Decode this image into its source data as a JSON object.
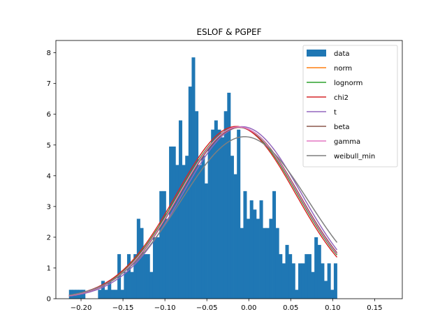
{
  "chart_data": {
    "type": "bar",
    "title": "ESLOF & PGPEF",
    "xlabel": "",
    "ylabel": "",
    "xlim": [
      -0.23,
      0.183
    ],
    "ylim": [
      0,
      8.4
    ],
    "grid": false,
    "legend_placement": "top-right",
    "x_ticks": [
      -0.2,
      -0.15,
      -0.1,
      -0.05,
      0.0,
      0.05,
      0.1,
      0.15
    ],
    "x_tick_labels": [
      "−0.20",
      "−0.15",
      "−0.10",
      "−0.05",
      "0.00",
      "0.05",
      "0.10",
      "0.15"
    ],
    "y_ticks": [
      0,
      1,
      2,
      3,
      4,
      5,
      6,
      7,
      8
    ],
    "y_tick_labels": [
      "0",
      "1",
      "2",
      "3",
      "4",
      "5",
      "6",
      "7",
      "8"
    ],
    "histogram": {
      "name": "data",
      "color": "#1f77b4",
      "bin_start": -0.2144,
      "bin_width": 0.00385,
      "values": [
        0.29,
        0.29,
        0.29,
        0.29,
        0.29,
        0,
        0,
        0,
        0,
        0.29,
        0.58,
        0.29,
        0.58,
        0.29,
        0.29,
        1.45,
        0.29,
        0.87,
        1.45,
        0.87,
        1.45,
        2.6,
        2.3,
        1.45,
        1.45,
        0.87,
        2.0,
        2.0,
        3.5,
        3.5,
        2.6,
        4.95,
        4.95,
        4.35,
        5.8,
        4.35,
        4.65,
        6.9,
        7.85,
        6.1,
        4.35,
        4.65,
        3.75,
        4.95,
        5.5,
        5.8,
        5.5,
        5.25,
        6.1,
        6.7,
        4.65,
        4.05,
        5.5,
        2.3,
        3.5,
        2.6,
        3.2,
        2.9,
        2.6,
        3.2,
        2.3,
        2.3,
        2.6,
        3.5,
        2.3,
        1.45,
        1.15,
        1.75,
        1.45,
        1.15,
        0.29,
        1.15,
        1.15,
        1.45,
        1.45,
        0.87,
        2.0,
        1.75,
        1.15,
        0.58,
        1.15,
        0.29,
        1.15
      ]
    },
    "series": [
      {
        "name": "norm",
        "color": "#ff7f0e",
        "mean": -0.012,
        "std": 0.0715
      },
      {
        "name": "lognorm",
        "color": "#2ca02c",
        "mean": -0.013,
        "std": 0.0715
      },
      {
        "name": "chi2",
        "color": "#d62728",
        "mean": -0.015,
        "std": 0.0712
      },
      {
        "name": "t",
        "color": "#9467bd",
        "mean": -0.008,
        "std": 0.0713
      },
      {
        "name": "beta",
        "color": "#8c564b",
        "mean": -0.011,
        "std": 0.0716
      },
      {
        "name": "gamma",
        "color": "#e377c2",
        "mean": -0.012,
        "std": 0.0714
      },
      {
        "name": "weibull_min",
        "color": "#7f7f7f",
        "mean": -0.005,
        "std": 0.0757
      }
    ]
  }
}
